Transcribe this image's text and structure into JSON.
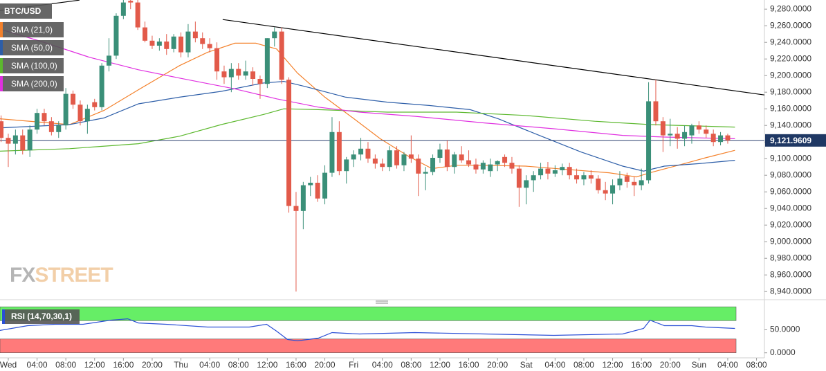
{
  "chart_data": [
    {
      "type": "candlestick",
      "symbol": "BTC/USD",
      "xlim": [
        -1.15,
        105.1
      ],
      "ylim": [
        8931,
        9291
      ],
      "yticks": [
        {
          "value": 9280,
          "label": "9,280.0000"
        },
        {
          "value": 9260,
          "label": "9,260.0000"
        },
        {
          "value": 9240,
          "label": "9,240.0000"
        },
        {
          "value": 9220,
          "label": "9,220.0000"
        },
        {
          "value": 9200,
          "label": "9,200.0000"
        },
        {
          "value": 9180,
          "label": "9,180.0000"
        },
        {
          "value": 9160,
          "label": "9,160.0000"
        },
        {
          "value": 9140,
          "label": "9,140.0000"
        },
        {
          "value": 9120,
          "label": "9,120.0000"
        },
        {
          "value": 9100,
          "label": "9,100.0000"
        },
        {
          "value": 9080,
          "label": "9,080.0000"
        },
        {
          "value": 9060,
          "label": "9,060.0000"
        },
        {
          "value": 9040,
          "label": "9,040.0000"
        },
        {
          "value": 9020,
          "label": "9,020.0000"
        },
        {
          "value": 9000,
          "label": "9,000.0000"
        },
        {
          "value": 8980,
          "label": "8,980.0000"
        },
        {
          "value": 8960,
          "label": "8,960.0000"
        },
        {
          "value": 8940,
          "label": "8,940.0000"
        }
      ],
      "up_color": "#3a8f78",
      "down_color": "#e25a4a",
      "x": [
        -1,
        0,
        1,
        2,
        3,
        4,
        5,
        6,
        7,
        8,
        9,
        10,
        11,
        12,
        13,
        14,
        15,
        16,
        17,
        18,
        19,
        20,
        21,
        22,
        23,
        24,
        25,
        26,
        27,
        28,
        29,
        30,
        31,
        32,
        33,
        34,
        35,
        36,
        37,
        38,
        39,
        40,
        41,
        42,
        43,
        44,
        45,
        46,
        47,
        48,
        49,
        50,
        51,
        52,
        53,
        54,
        55,
        56,
        57,
        58,
        59,
        60,
        61,
        62,
        63,
        64,
        65,
        66,
        67,
        68,
        69,
        70,
        71,
        72,
        73,
        74,
        75,
        76,
        77,
        78,
        79,
        80,
        81,
        82,
        83,
        84,
        85,
        86,
        87,
        88,
        89,
        90,
        91,
        92,
        93,
        94,
        95,
        96,
        97,
        98,
        99,
        100
      ],
      "ohlc": [
        [
          9145,
          9152,
          9120,
          9125
        ],
        [
          9125,
          9130,
          9090,
          9118
        ],
        [
          9118,
          9135,
          9105,
          9128
        ],
        [
          9128,
          9135,
          9105,
          9110
        ],
        [
          9110,
          9140,
          9102,
          9135
        ],
        [
          9135,
          9160,
          9130,
          9155
        ],
        [
          9155,
          9160,
          9140,
          9145
        ],
        [
          9145,
          9150,
          9128,
          9132
        ],
        [
          9132,
          9145,
          9125,
          9140
        ],
        [
          9140,
          9185,
          9135,
          9178
        ],
        [
          9178,
          9182,
          9160,
          9165
        ],
        [
          9165,
          9170,
          9140,
          9145
        ],
        [
          9145,
          9165,
          9130,
          9160
        ],
        [
          9168,
          9172,
          9158,
          9162
        ],
        [
          9162,
          9215,
          9158,
          9212
        ],
        [
          9212,
          9245,
          9205,
          9224
        ],
        [
          9224,
          9275,
          9220,
          9272
        ],
        [
          9272,
          9295,
          9268,
          9288
        ],
        [
          9290,
          9295,
          9280,
          9288
        ],
        [
          9288,
          9292,
          9255,
          9258
        ],
        [
          9258,
          9265,
          9240,
          9242
        ],
        [
          9242,
          9248,
          9232,
          9236
        ],
        [
          9236,
          9245,
          9230,
          9241
        ],
        [
          9241,
          9250,
          9225,
          9232
        ],
        [
          9232,
          9250,
          9228,
          9247
        ],
        [
          9247,
          9252,
          9222,
          9228
        ],
        [
          9228,
          9262,
          9222,
          9253
        ],
        [
          9253,
          9265,
          9240,
          9245
        ],
        [
          9245,
          9252,
          9232,
          9238
        ],
        [
          9238,
          9245,
          9228,
          9233
        ],
        [
          9233,
          9240,
          9195,
          9205
        ],
        [
          9205,
          9212,
          9190,
          9198
        ],
        [
          9198,
          9215,
          9180,
          9208
        ],
        [
          9208,
          9215,
          9195,
          9200
        ],
        [
          9200,
          9218,
          9195,
          9205
        ],
        [
          9205,
          9210,
          9188,
          9196
        ],
        [
          9196,
          9200,
          9172,
          9190
        ],
        [
          9190,
          9245,
          9185,
          9245
        ],
        [
          9245,
          9258,
          9235,
          9253
        ],
        [
          9253,
          9258,
          9190,
          9195
        ],
        [
          9195,
          9198,
          9035,
          9043
        ],
        [
          9043,
          9060,
          8940,
          9037
        ],
        [
          9037,
          9072,
          9015,
          9068
        ],
        [
          9068,
          9078,
          9055,
          9071
        ],
        [
          9071,
          9080,
          9048,
          9052
        ],
        [
          9052,
          9092,
          9045,
          9083
        ],
        [
          9083,
          9150,
          9078,
          9132
        ],
        [
          9132,
          9145,
          9080,
          9085
        ],
        [
          9085,
          9102,
          9070,
          9099
        ],
        [
          9099,
          9110,
          9090,
          9105
        ],
        [
          9105,
          9125,
          9098,
          9112
        ],
        [
          9112,
          9120,
          9095,
          9100
        ],
        [
          9100,
          9105,
          9088,
          9094
        ],
        [
          9094,
          9100,
          9085,
          9090
        ],
        [
          9090,
          9115,
          9085,
          9110
        ],
        [
          9110,
          9115,
          9088,
          9092
        ],
        [
          9092,
          9108,
          9085,
          9105
        ],
        [
          9105,
          9128,
          9095,
          9100
        ],
        [
          9100,
          9105,
          9055,
          9082
        ],
        [
          9082,
          9090,
          9062,
          9084
        ],
        [
          9084,
          9105,
          9080,
          9101
        ],
        [
          9101,
          9118,
          9095,
          9111
        ],
        [
          9111,
          9122,
          9085,
          9090
        ],
        [
          9090,
          9108,
          9082,
          9105
        ],
        [
          9105,
          9115,
          9095,
          9098
        ],
        [
          9098,
          9110,
          9090,
          9093
        ],
        [
          9093,
          9100,
          9082,
          9087
        ],
        [
          9087,
          9098,
          9082,
          9095
        ],
        [
          9085,
          9100,
          9078,
          9093
        ],
        [
          9093,
          9098,
          9085,
          9097
        ],
        [
          9102,
          9105,
          9090,
          9095
        ],
        [
          9095,
          9102,
          9082,
          9088
        ],
        [
          9088,
          9092,
          9042,
          9065
        ],
        [
          9065,
          9080,
          9045,
          9074
        ],
        [
          9074,
          9085,
          9060,
          9080
        ],
        [
          9080,
          9095,
          9075,
          9088
        ],
        [
          9088,
          9096,
          9075,
          9082
        ],
        [
          9082,
          9092,
          9078,
          9086
        ],
        [
          9086,
          9094,
          9080,
          9090
        ],
        [
          9090,
          9095,
          9075,
          9080
        ],
        [
          9080,
          9088,
          9070,
          9075
        ],
        [
          9075,
          9084,
          9068,
          9080
        ],
        [
          9080,
          9086,
          9070,
          9076
        ],
        [
          9076,
          9080,
          9058,
          9062
        ],
        [
          9062,
          9072,
          9050,
          9058
        ],
        [
          9058,
          9075,
          9045,
          9068
        ],
        [
          9068,
          9085,
          9062,
          9076
        ],
        [
          9079,
          9083,
          9065,
          9072
        ],
        [
          9072,
          9078,
          9055,
          9068
        ],
        [
          9068,
          9088,
          9062,
          9074
        ],
        [
          9074,
          9192,
          9070,
          9169
        ],
        [
          9169,
          9195,
          9140,
          9145
        ],
        [
          9145,
          9150,
          9108,
          9128
        ],
        [
          9128,
          9148,
          9115,
          9130
        ],
        [
          9130,
          9138,
          9112,
          9124
        ],
        [
          9124,
          9140,
          9115,
          9132
        ],
        [
          9128,
          9142,
          9118,
          9140
        ],
        [
          9140,
          9145,
          9130,
          9135
        ],
        [
          9135,
          9140,
          9125,
          9130
        ],
        [
          9130,
          9135,
          9115,
          9120
        ],
        [
          9120,
          9132,
          9116,
          9128
        ],
        [
          9128,
          9130,
          9118,
          9122
        ]
      ],
      "series": [
        {
          "name": "SMA (21,0)",
          "color": "#f4812b",
          "x": [
            -1.2,
            8.5,
            13.3,
            18.1,
            23.8,
            27.7,
            31.5,
            34.4,
            37.3,
            40.2,
            44.0,
            47.9,
            51.7,
            55.6,
            58.9,
            62.3,
            66.2,
            71.9,
            77.7,
            83.5,
            87.3,
            89.2,
            93.1,
            96.9,
            101.0
          ],
          "values": [
            9148,
            9141,
            9158,
            9183,
            9212,
            9228,
            9239,
            9239,
            9232,
            9203,
            9174,
            9149,
            9124,
            9103,
            9088,
            9092,
            9092,
            9091,
            9087,
            9083,
            9078,
            9083,
            9092,
            9101,
            9110
          ]
        },
        {
          "name": "SMA (50,0)",
          "color": "#2d5ea8",
          "x": [
            -1.2,
            8.5,
            13.3,
            18.1,
            23.8,
            29.6,
            35.4,
            38.3,
            41.2,
            46.9,
            52.7,
            58.5,
            64.2,
            68.1,
            73.8,
            79.6,
            85.4,
            88.3,
            91.2,
            96.0,
            101.0
          ],
          "values": [
            9137,
            9141,
            9149,
            9166,
            9174,
            9181,
            9191,
            9193,
            9187,
            9174,
            9168,
            9164,
            9159,
            9148,
            9128,
            9108,
            9091,
            9085,
            9091,
            9094,
            9098
          ]
        },
        {
          "name": "SMA (100,0)",
          "color": "#5cb82e",
          "x": [
            -1.2,
            8.5,
            18.1,
            23.8,
            29.6,
            35.4,
            38.3,
            43.1,
            52.7,
            62.3,
            71.9,
            81.5,
            89.2,
            101.0
          ],
          "values": [
            9109,
            9112,
            9118,
            9127,
            9141,
            9153,
            9160,
            9159,
            9156,
            9156,
            9152,
            9145,
            9141,
            9138
          ]
        },
        {
          "name": "SMA (200,0)",
          "color": "#e030e0",
          "x": [
            -1.2,
            4.6,
            11.3,
            18.1,
            23.8,
            31.5,
            37.3,
            43.1,
            48.8,
            56.5,
            66.2,
            75.8,
            85.4,
            91.2,
            101.0
          ],
          "values": [
            9256,
            9241,
            9222,
            9207,
            9197,
            9184,
            9172,
            9162,
            9156,
            9151,
            9143,
            9136,
            9128,
            9126,
            9124
          ]
        }
      ],
      "trendlines": [
        {
          "x": [
            -1.15,
            9.9
          ],
          "values": [
            9278.3,
            9290.8
          ]
        },
        {
          "x": [
            29.8,
            105.1
          ],
          "values": [
            9267.5,
            9176.7
          ]
        }
      ],
      "last_price": {
        "value": 9121.9609,
        "label": "9,121.9609"
      },
      "watermark": [
        "FX",
        "STREET"
      ]
    },
    {
      "type": "line",
      "xlim": [
        -1.15,
        105.1
      ],
      "ylim": [
        -11,
        105
      ],
      "yticks": [
        {
          "value": 50,
          "label": "50.0000"
        },
        {
          "value": 0,
          "label": "0.0000"
        }
      ],
      "bands": [
        {
          "from": 70,
          "to": 100,
          "color": "#66ee66"
        },
        {
          "from": 0,
          "to": 30,
          "color": "#ff7a7a"
        }
      ],
      "series": [
        {
          "name": "RSI (14,70,30,1)",
          "color": "#2a4fd6",
          "x": [
            -1.2,
            2.7,
            6.5,
            10.4,
            14.2,
            16.6,
            18.1,
            21.9,
            27.7,
            33.5,
            35.9,
            37.3,
            38.8,
            40.2,
            43.1,
            45.0,
            48.8,
            56.5,
            66.2,
            75.8,
            85.4,
            88.3,
            89.2,
            91.2,
            95.0,
            96.9,
            101.0
          ],
          "values": [
            48.5,
            59,
            62,
            62,
            71,
            74,
            65,
            62,
            56,
            56,
            62,
            47,
            29,
            26,
            32,
            44,
            41,
            44,
            41,
            38,
            41,
            53,
            71,
            59,
            59,
            56,
            53
          ]
        }
      ],
      "xticks": [
        {
          "value": 0,
          "label": "Wed"
        },
        {
          "value": 4,
          "label": "04:00"
        },
        {
          "value": 8,
          "label": "08:00"
        },
        {
          "value": 12,
          "label": "12:00"
        },
        {
          "value": 16,
          "label": "16:00"
        },
        {
          "value": 20,
          "label": "20:00"
        },
        {
          "value": 24,
          "label": "Thu"
        },
        {
          "value": 28,
          "label": "04:00"
        },
        {
          "value": 32,
          "label": "08:00"
        },
        {
          "value": 36,
          "label": "12:00"
        },
        {
          "value": 40,
          "label": "16:00"
        },
        {
          "value": 44,
          "label": "20:00"
        },
        {
          "value": 48,
          "label": "Fri"
        },
        {
          "value": 52,
          "label": "04:00"
        },
        {
          "value": 56,
          "label": "08:00"
        },
        {
          "value": 60,
          "label": "12:00"
        },
        {
          "value": 64,
          "label": "16:00"
        },
        {
          "value": 68,
          "label": "20:00"
        },
        {
          "value": 72,
          "label": "Sat"
        },
        {
          "value": 76,
          "label": "04:00"
        },
        {
          "value": 80,
          "label": "08:00"
        },
        {
          "value": 84,
          "label": "12:00"
        },
        {
          "value": 88,
          "label": "16:00"
        },
        {
          "value": 92,
          "label": "20:00"
        },
        {
          "value": 96,
          "label": "Sun"
        },
        {
          "value": 100,
          "label": "04:00"
        },
        {
          "value": 104,
          "label": "08:00"
        }
      ]
    }
  ]
}
